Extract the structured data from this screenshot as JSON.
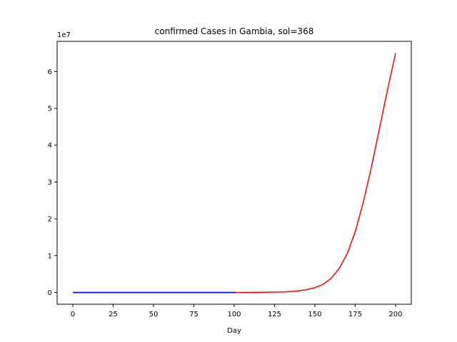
{
  "chart_data": {
    "type": "line",
    "title": "confirmed Cases in Gambia, sol=368",
    "xlabel": "Day",
    "ylabel": "",
    "y_offset_label": "1e7",
    "xlim": [
      -9.75,
      209.75
    ],
    "ylim": [
      -3200000,
      68200000
    ],
    "x_ticks": [
      0,
      25,
      50,
      75,
      100,
      125,
      150,
      175,
      200
    ],
    "y_ticks": [
      0,
      10000000,
      20000000,
      30000000,
      40000000,
      50000000,
      60000000
    ],
    "y_tick_labels": [
      "0",
      "1",
      "2",
      "3",
      "4",
      "5",
      "6"
    ],
    "grid": false,
    "series": [
      {
        "color": "#ff0000",
        "x": [
          0,
          100,
          110,
          120,
          130,
          135,
          140,
          145,
          150,
          155,
          160,
          165,
          170,
          175,
          180,
          185,
          190,
          195,
          200
        ],
        "y": [
          0,
          0,
          20000,
          60000,
          150000,
          250000,
          450000,
          800000,
          1300000,
          2200000,
          3800000,
          6500000,
          10500000,
          16500000,
          24500000,
          34000000,
          44500000,
          55000000,
          65000000
        ]
      },
      {
        "color": "#0000ff",
        "x": [
          0,
          25,
          50,
          75,
          101
        ],
        "y": [
          0,
          0,
          0,
          0,
          0
        ]
      }
    ]
  }
}
